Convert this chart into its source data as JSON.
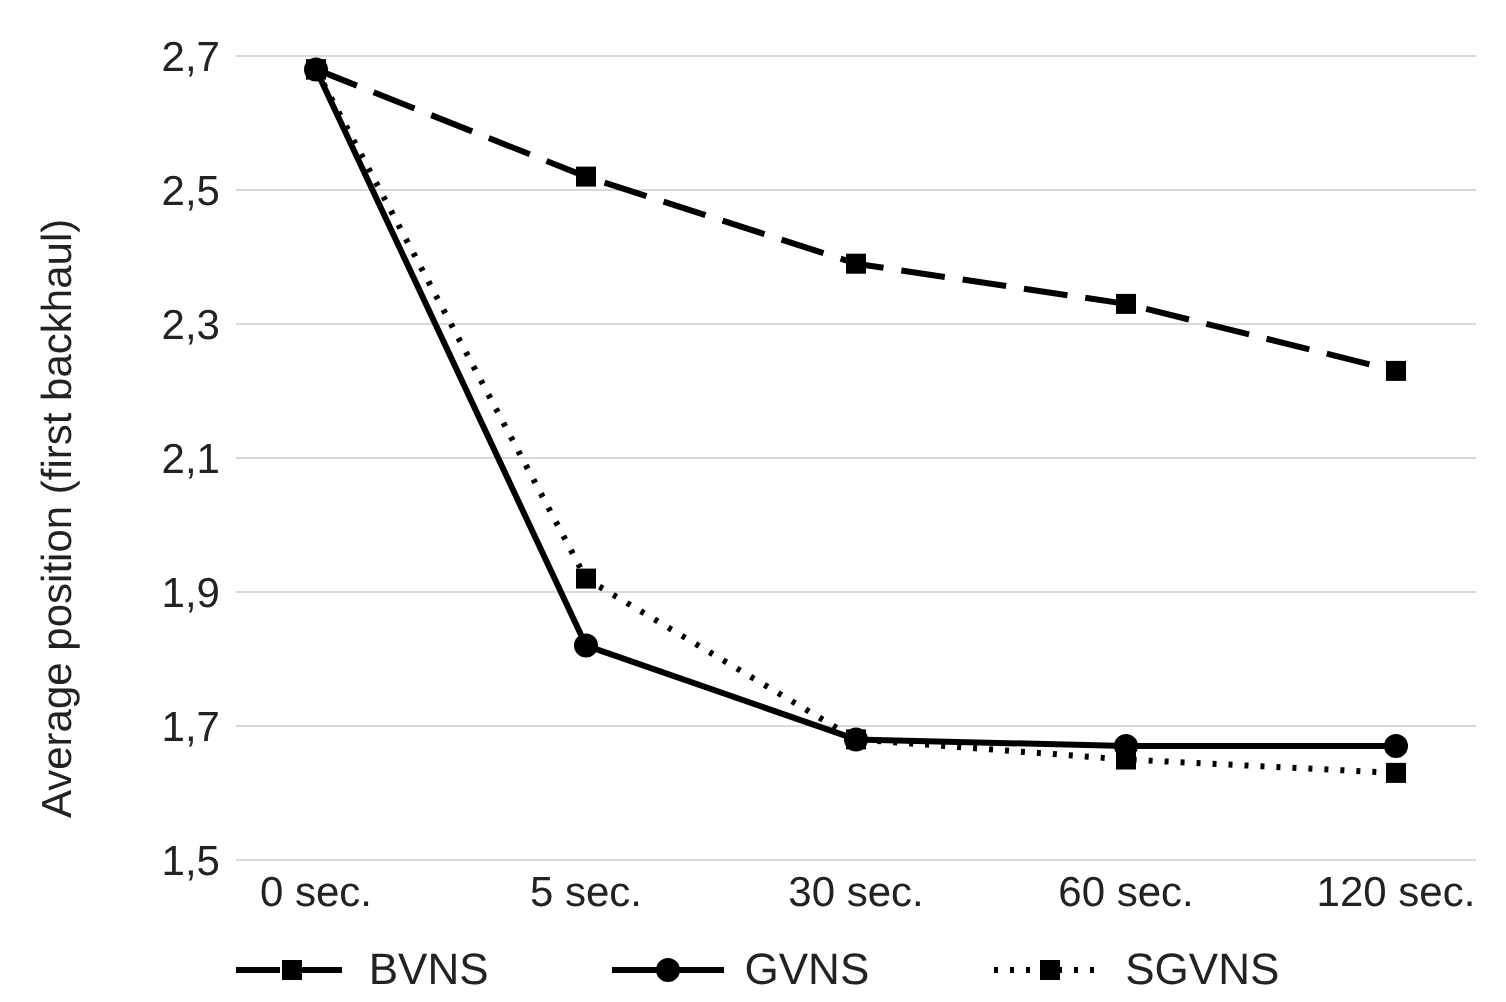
{
  "chart_data": {
    "type": "line",
    "ylabel": "Average position (first backhaul)",
    "categories": [
      "0 sec.",
      "5 sec.",
      "30 sec.",
      "60 sec.",
      "120 sec."
    ],
    "series": [
      {
        "name": "BVNS",
        "color": "#000000",
        "marker": "square",
        "line_style": "dashed",
        "values": [
          2.68,
          2.52,
          2.39,
          2.33,
          2.23
        ]
      },
      {
        "name": "GVNS",
        "color": "#000000",
        "marker": "circle",
        "line_style": "solid",
        "values": [
          2.68,
          1.82,
          1.68,
          1.67,
          1.67
        ]
      },
      {
        "name": "SGVNS",
        "color": "#000000",
        "marker": "square",
        "line_style": "dotted",
        "values": [
          2.68,
          1.92,
          1.68,
          1.65,
          1.63
        ]
      }
    ],
    "ylim": [
      1.5,
      2.7
    ],
    "yticks": [
      {
        "value": 1.5,
        "label": "1,5"
      },
      {
        "value": 1.7,
        "label": "1,7"
      },
      {
        "value": 1.9,
        "label": "1,9"
      },
      {
        "value": 2.1,
        "label": "2,1"
      },
      {
        "value": 2.3,
        "label": "2,3"
      },
      {
        "value": 2.5,
        "label": "2,5"
      },
      {
        "value": 2.7,
        "label": "2,7"
      }
    ],
    "grid": "y",
    "legend": "bottom"
  }
}
